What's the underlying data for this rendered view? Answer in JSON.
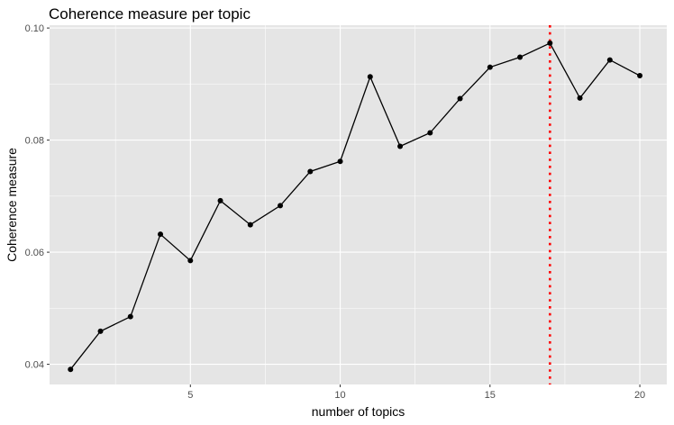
{
  "chart_data": {
    "type": "line",
    "title": "Coherence measure per topic",
    "xlabel": "number of topics",
    "ylabel": "Coherence measure",
    "x": [
      1,
      2,
      3,
      4,
      5,
      6,
      7,
      8,
      9,
      10,
      11,
      12,
      13,
      14,
      15,
      16,
      17,
      18,
      19,
      20
    ],
    "series": [
      {
        "values": [
          0.0391,
          0.0459,
          0.0485,
          0.0632,
          0.0585,
          0.0692,
          0.0649,
          0.0683,
          0.0744,
          0.0762,
          0.0913,
          0.0789,
          0.0813,
          0.0874,
          0.093,
          0.0948,
          0.0973,
          0.0875,
          0.0943,
          0.0915
        ],
        "color": "#000000",
        "markers": true
      }
    ],
    "xlim": [
      0.3,
      20.9
    ],
    "ylim": [
      0.0364,
      0.1005
    ],
    "x_ticks": [
      5,
      10,
      15,
      20
    ],
    "x_tick_labels": [
      "5",
      "10",
      "15",
      "20"
    ],
    "y_ticks": [
      0.04,
      0.06,
      0.08,
      0.1
    ],
    "y_tick_labels": [
      "0.04",
      "0.06",
      "0.08",
      "0.10"
    ],
    "vline": {
      "x": 17,
      "color": "#ff0000",
      "style": "dotted"
    },
    "grid": true,
    "legend": "none",
    "panel_background": "#e5e5e5",
    "grid_color": "#ffffff"
  }
}
